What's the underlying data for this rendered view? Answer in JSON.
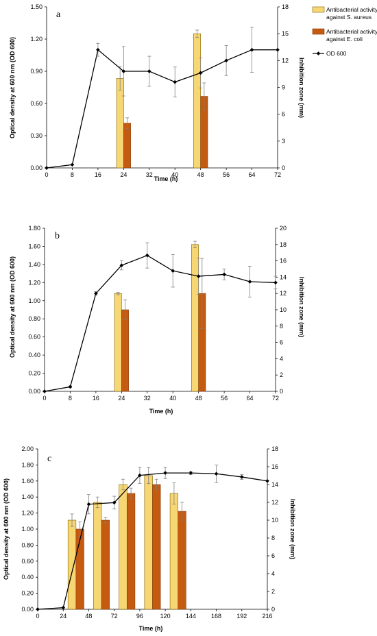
{
  "colors": {
    "s_aureus": "#f7d774",
    "e_coli": "#c55a11",
    "od": "#000000",
    "error_bar": "#7f7f7f"
  },
  "legend": {
    "s_aureus_line1": "Antibacterial activity",
    "s_aureus_line2": "against S. aureus",
    "e_coli_line1": "Antibacterial activity",
    "e_coli_line2": "against E. coli",
    "od": "OD 600"
  },
  "chart_data": [
    {
      "type": "bar+line",
      "panel_label": "a",
      "xlabel": "Time (h)",
      "ylabel": "Optical density at 600 nm (OD 600)",
      "y2label": "Inhibition zone (mm)",
      "xlim": [
        0,
        72
      ],
      "xticks": [
        "0",
        "8",
        "16",
        "24",
        "32",
        "40",
        "48",
        "56",
        "64",
        "72"
      ],
      "ylim": [
        0,
        1.5
      ],
      "yticks": [
        "0.00",
        "0.30",
        "0.60",
        "0.90",
        "1.20",
        "1.50"
      ],
      "y2lim": [
        0,
        18
      ],
      "y2ticks": [
        "0",
        "3",
        "6",
        "9",
        "12",
        "15",
        "18"
      ],
      "bar_groups": [
        24,
        48
      ],
      "bar_width_hours": 2.2,
      "series": [
        {
          "name": "OD 600",
          "kind": "line",
          "x": [
            0,
            8,
            16,
            24,
            32,
            40,
            48,
            56,
            64,
            72
          ],
          "values": [
            0.0,
            0.03,
            1.1,
            0.9,
            0.9,
            0.8,
            0.885,
            1.0,
            1.1,
            1.1
          ],
          "errors": [
            0,
            0,
            0.06,
            0.23,
            0.14,
            0.14,
            0.14,
            0.14,
            0.21,
            0
          ]
        },
        {
          "name": "Antibacterial activity against S. aureus",
          "kind": "bar",
          "x": [
            24,
            48
          ],
          "values": [
            10.0,
            15.0
          ],
          "errors": [
            1.3,
            0.4
          ]
        },
        {
          "name": "Antibacterial activity against E. coli",
          "kind": "bar",
          "x": [
            24,
            48
          ],
          "values": [
            5.0,
            8.0
          ],
          "errors": [
            0.6,
            1.5
          ]
        }
      ]
    },
    {
      "type": "bar+line",
      "panel_label": "b",
      "xlabel": "Time (h)",
      "ylabel": "Optical density at 600 nm (OD 600)",
      "y2label": "Inhibition zone (mm)",
      "xlim": [
        0,
        72
      ],
      "xticks": [
        "0",
        "8",
        "16",
        "24",
        "32",
        "40",
        "48",
        "56",
        "64",
        "72"
      ],
      "ylim": [
        0,
        1.8
      ],
      "yticks": [
        "0.00",
        "0.20",
        "0.40",
        "0.60",
        "0.80",
        "1.00",
        "1.20",
        "1.40",
        "1.60",
        "1.80"
      ],
      "y2lim": [
        0,
        20
      ],
      "y2ticks": [
        "0",
        "2",
        "4",
        "6",
        "8",
        "10",
        "12",
        "14",
        "16",
        "18",
        "20"
      ],
      "bar_groups": [
        24,
        48
      ],
      "bar_width_hours": 2.2,
      "series": [
        {
          "name": "OD 600",
          "kind": "line",
          "x": [
            0,
            8,
            16,
            24,
            32,
            40,
            48,
            56,
            64,
            72
          ],
          "values": [
            0.0,
            0.05,
            1.08,
            1.39,
            1.5,
            1.33,
            1.27,
            1.29,
            1.21,
            1.2
          ],
          "errors": [
            0,
            0.01,
            0.02,
            0.05,
            0.14,
            0.18,
            0.2,
            0.06,
            0.17,
            0.07
          ]
        },
        {
          "name": "Antibacterial activity against S. aureus",
          "kind": "bar",
          "x": [
            24,
            48
          ],
          "values": [
            12.0,
            18.0
          ],
          "errors": [
            0.15,
            0.4
          ]
        },
        {
          "name": "Antibacterial activity against E. coli",
          "kind": "bar",
          "x": [
            24,
            48
          ],
          "values": [
            10.0,
            12.0
          ],
          "errors": [
            1.2,
            4.3
          ]
        }
      ]
    },
    {
      "type": "bar+line",
      "panel_label": "c",
      "xlabel": "Time (h)",
      "ylabel": "Optical density at 600 nm (OD 600)",
      "y2label": "Inhibition zone (mm)",
      "xlim": [
        0,
        216
      ],
      "xticks": [
        "0",
        "24",
        "48",
        "72",
        "96",
        "120",
        "144",
        "168",
        "192",
        "216"
      ],
      "ylim": [
        0,
        2.0
      ],
      "yticks": [
        "0.00",
        "0.20",
        "0.40",
        "0.60",
        "0.80",
        "1.00",
        "1.20",
        "1.40",
        "1.60",
        "1.80",
        "2.00"
      ],
      "y2lim": [
        0,
        18
      ],
      "y2ticks": [
        "0",
        "2",
        "4",
        "6",
        "8",
        "10",
        "12",
        "14",
        "16",
        "18"
      ],
      "bar_groups": [
        36,
        60,
        84,
        108,
        132
      ],
      "bar_width_hours": 7.5,
      "series": [
        {
          "name": "OD 600",
          "kind": "line",
          "x": [
            0,
            24,
            48,
            72,
            96,
            120,
            144,
            168,
            192,
            216
          ],
          "values": [
            0.0,
            0.02,
            1.31,
            1.33,
            1.67,
            1.7,
            1.7,
            1.69,
            1.65,
            1.6
          ],
          "errors": [
            0,
            0,
            0.12,
            0.08,
            0.1,
            0.07,
            0.02,
            0.11,
            0.03,
            0
          ]
        },
        {
          "name": "Antibacterial activity against S. aureus",
          "kind": "bar",
          "x": [
            36,
            60,
            84,
            108,
            132
          ],
          "values": [
            10.0,
            12.0,
            14.0,
            15.0,
            13.0
          ],
          "errors": [
            0.7,
            0.6,
            0.6,
            0.9,
            1.2
          ]
        },
        {
          "name": "Antibacterial activity against E. coli",
          "kind": "bar",
          "x": [
            36,
            60,
            84,
            108,
            132
          ],
          "values": [
            9.0,
            10.0,
            13.0,
            14.0,
            11.0
          ],
          "errors": [
            0.8,
            0.3,
            0.6,
            0.6,
            1.0
          ]
        }
      ]
    }
  ]
}
